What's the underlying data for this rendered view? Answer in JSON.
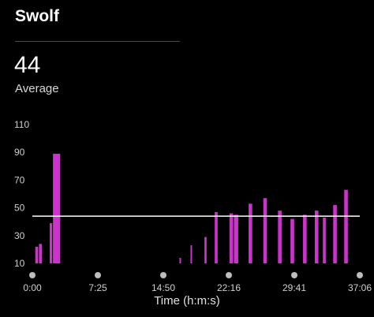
{
  "header": {
    "title": "Swolf",
    "average_value": "44",
    "average_label": "Average"
  },
  "colors": {
    "bar": "#cc33cc",
    "average_line": "#ffffff",
    "tick_text": "#cfcfcf",
    "dot": "#bdbdbd"
  },
  "chart_data": {
    "type": "bar",
    "xlabel": "Time (h:m:s)",
    "x_ticks": [
      "0:00",
      "7:25",
      "14:50",
      "22:16",
      "29:41",
      "37:06"
    ],
    "x_range_seconds": [
      0,
      2226
    ],
    "y_ticks": [
      10,
      30,
      50,
      70,
      90,
      110
    ],
    "ylim": [
      10,
      110
    ],
    "average_line": 44,
    "bars": [
      {
        "start": 20,
        "end": 45,
        "value": 22
      },
      {
        "start": 45,
        "end": 70,
        "value": 24
      },
      {
        "start": 118,
        "end": 140,
        "value": 39
      },
      {
        "start": 140,
        "end": 195,
        "value": 89
      },
      {
        "start": 1000,
        "end": 1012,
        "value": 14
      },
      {
        "start": 1075,
        "end": 1090,
        "value": 23
      },
      {
        "start": 1170,
        "end": 1190,
        "value": 29
      },
      {
        "start": 1240,
        "end": 1265,
        "value": 47
      },
      {
        "start": 1340,
        "end": 1370,
        "value": 46
      },
      {
        "start": 1370,
        "end": 1405,
        "value": 45
      },
      {
        "start": 1470,
        "end": 1500,
        "value": 53
      },
      {
        "start": 1570,
        "end": 1600,
        "value": 57
      },
      {
        "start": 1670,
        "end": 1700,
        "value": 48
      },
      {
        "start": 1755,
        "end": 1785,
        "value": 42
      },
      {
        "start": 1840,
        "end": 1870,
        "value": 45
      },
      {
        "start": 1920,
        "end": 1950,
        "value": 48
      },
      {
        "start": 1975,
        "end": 2000,
        "value": 43
      },
      {
        "start": 2045,
        "end": 2075,
        "value": 52
      },
      {
        "start": 2120,
        "end": 2150,
        "value": 63
      }
    ]
  }
}
